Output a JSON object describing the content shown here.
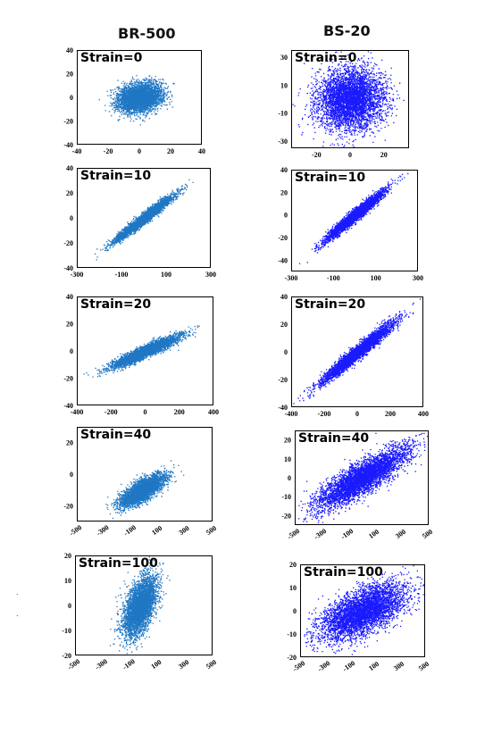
{
  "chart_data": [
    {
      "type": "scatter",
      "column_title": "BR-500",
      "label": "Strain=0",
      "color": "#1f77c4",
      "center": [
        0,
        0
      ],
      "spread_x": 7,
      "spread_y": 6,
      "corr": 0.2,
      "points": 4000,
      "xlim": [
        -40,
        40
      ],
      "ylim": [
        -40,
        40
      ],
      "xticks": [
        "-40",
        "-20",
        "0",
        "20",
        "40"
      ],
      "yticks": [
        "40",
        "20",
        "0",
        "-20",
        "-40"
      ],
      "xtick_rotated": false
    },
    {
      "type": "scatter",
      "column_title": "BS-20",
      "label": "Strain=0",
      "color": "#1a1aff",
      "center": [
        0,
        0
      ],
      "spread_x": 10,
      "spread_y": 11,
      "corr": 0.05,
      "points": 4500,
      "xlim": [
        -35,
        35
      ],
      "ylim": [
        -35,
        35
      ],
      "xticks": [
        "-20",
        "0",
        "20"
      ],
      "yticks": [
        "30",
        "10",
        "-10",
        "-30"
      ],
      "xtick_rotated": false
    },
    {
      "type": "scatter",
      "label": "Strain=10",
      "color": "#1f77c4",
      "center": [
        0,
        0
      ],
      "spread_x": 65,
      "spread_y": 9,
      "corr": 0.97,
      "points": 3500,
      "xlim": [
        -300,
        300
      ],
      "ylim": [
        -40,
        40
      ],
      "xticks": [
        "-300",
        "-100",
        "100",
        "300"
      ],
      "yticks": [
        "40",
        "20",
        "0",
        "-20",
        "-40"
      ],
      "xtick_rotated": false
    },
    {
      "type": "scatter",
      "label": "Strain=10",
      "color": "#1a1aff",
      "center": [
        0,
        0
      ],
      "spread_x": 70,
      "spread_y": 11,
      "corr": 0.97,
      "points": 3500,
      "xlim": [
        -300,
        300
      ],
      "ylim": [
        -50,
        40
      ],
      "xticks": [
        "-300",
        "-100",
        "100",
        "300"
      ],
      "yticks": [
        "40",
        "20",
        "0",
        "-20",
        "-40"
      ],
      "xtick_rotated": false
    },
    {
      "type": "scatter",
      "label": "Strain=20",
      "color": "#1f77c4",
      "center": [
        0,
        0
      ],
      "spread_x": 100,
      "spread_y": 6,
      "corr": 0.93,
      "points": 3500,
      "xlim": [
        -400,
        400
      ],
      "ylim": [
        -40,
        40
      ],
      "xticks": [
        "-400",
        "-200",
        "0",
        "200",
        "400"
      ],
      "yticks": [
        "40",
        "20",
        "0",
        "-20",
        "-40"
      ],
      "xtick_rotated": false
    },
    {
      "type": "scatter",
      "label": "Strain=20",
      "color": "#1a1aff",
      "center": [
        0,
        0
      ],
      "spread_x": 110,
      "spread_y": 11,
      "corr": 0.97,
      "points": 3500,
      "xlim": [
        -400,
        400
      ],
      "ylim": [
        -40,
        40
      ],
      "xticks": [
        "-400",
        "-200",
        "0",
        "200",
        "400"
      ],
      "yticks": [
        "40",
        "20",
        "0",
        "-20",
        "-40"
      ],
      "xtick_rotated": false
    },
    {
      "type": "scatter",
      "label": "Strain=40",
      "color": "#1f77c4",
      "center": [
        -20,
        -5
      ],
      "spread_x": 80,
      "spread_y": 5,
      "corr": 0.75,
      "points": 3500,
      "xlim": [
        -500,
        500
      ],
      "ylim": [
        -30,
        30
      ],
      "xticks": [
        "-500",
        "-300",
        "-100",
        "100",
        "300",
        "500"
      ],
      "yticks": [
        "20",
        "0",
        "-20"
      ],
      "xtick_rotated": true
    },
    {
      "type": "scatter",
      "label": "Strain=40",
      "color": "#1a1aff",
      "center": [
        0,
        0
      ],
      "spread_x": 170,
      "spread_y": 8,
      "corr": 0.85,
      "points": 4500,
      "xlim": [
        -500,
        500
      ],
      "ylim": [
        -25,
        25
      ],
      "xticks": [
        "-500",
        "-300",
        "-100",
        "100",
        "300",
        "500"
      ],
      "yticks": [
        "20",
        "10",
        "0",
        "-10",
        "-20"
      ],
      "xtick_rotated": true
    },
    {
      "type": "scatter",
      "label": "Strain=100",
      "color": "#1f77c4",
      "center": [
        -30,
        0
      ],
      "spread_x": 60,
      "spread_y": 6,
      "corr": 0.55,
      "points": 4000,
      "xlim": [
        -500,
        500
      ],
      "ylim": [
        -20,
        20
      ],
      "xticks": [
        "-500",
        "-300",
        "-100",
        "100",
        "300",
        "500"
      ],
      "yticks": [
        "20",
        "10",
        "0",
        "-10",
        "-20"
      ],
      "xtick_rotated": true
    },
    {
      "type": "scatter",
      "label": "Strain=100",
      "color": "#1a1aff",
      "center": [
        0,
        0
      ],
      "spread_x": 170,
      "spread_y": 6,
      "corr": 0.6,
      "points": 4500,
      "xlim": [
        -500,
        500
      ],
      "ylim": [
        -20,
        20
      ],
      "xticks": [
        "-500",
        "-300",
        "-100",
        "100",
        "300",
        "500"
      ],
      "yticks": [
        "20",
        "10",
        "0",
        "-10",
        "-20"
      ],
      "xtick_rotated": true
    }
  ],
  "stray_marks": [
    ".",
    "."
  ]
}
